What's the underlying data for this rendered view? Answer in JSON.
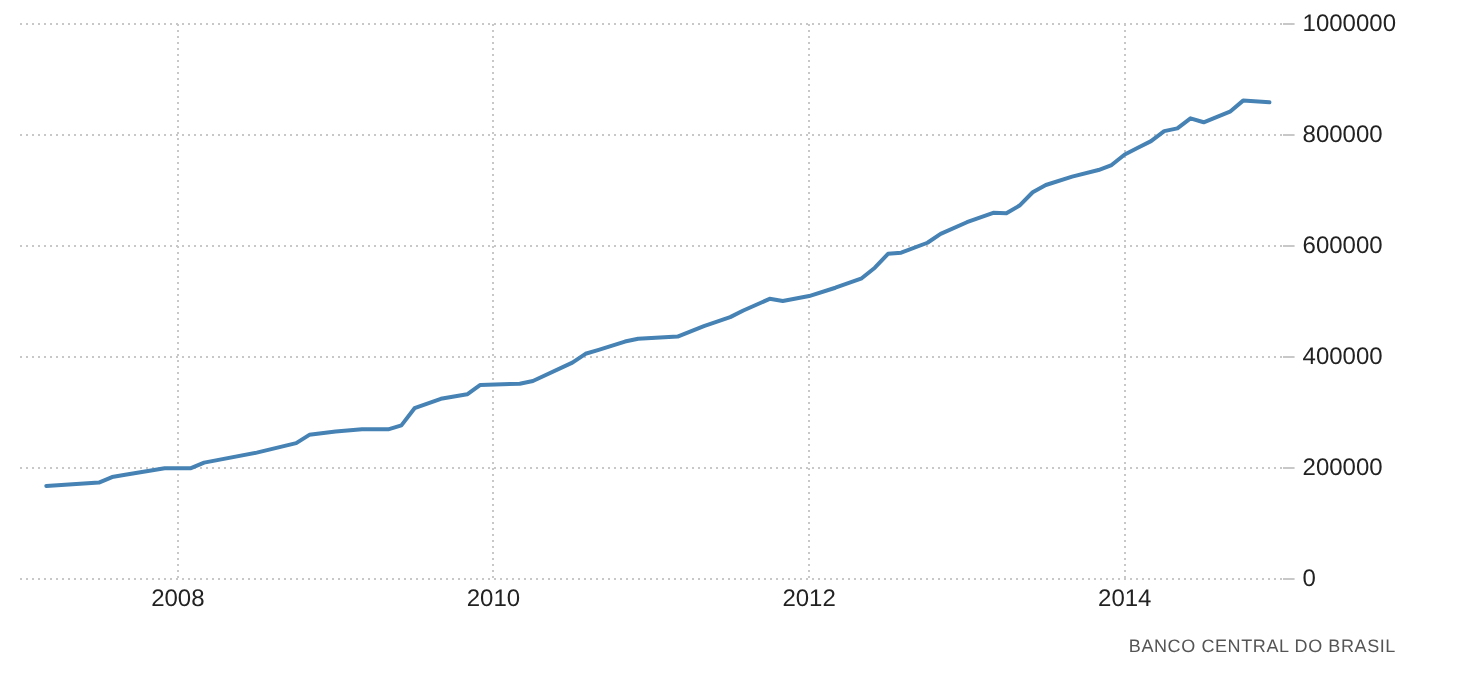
{
  "chart_data": {
    "type": "line",
    "x": [
      "2007-03",
      "2007-07",
      "2007-08",
      "2007-09",
      "2007-12",
      "2008-02",
      "2008-03",
      "2008-07",
      "2008-10",
      "2008-11",
      "2009-01",
      "2009-03",
      "2009-05",
      "2009-06",
      "2009-07",
      "2009-09",
      "2009-11",
      "2009-12",
      "2010-03",
      "2010-04",
      "2010-07",
      "2010-08",
      "2010-09",
      "2010-11",
      "2010-12",
      "2011-03",
      "2011-05",
      "2011-07",
      "2011-08",
      "2011-10",
      "2011-11",
      "2012-01",
      "2012-03",
      "2012-05",
      "2012-06",
      "2012-07",
      "2012-08",
      "2012-10",
      "2012-11",
      "2013-01",
      "2013-03",
      "2013-04",
      "2013-05",
      "2013-06",
      "2013-07",
      "2013-09",
      "2013-11",
      "2013-12",
      "2014-01",
      "2014-02",
      "2014-03",
      "2014-04",
      "2014-05",
      "2014-06",
      "2014-07",
      "2014-09",
      "2014-10",
      "2014-12"
    ],
    "series": [
      {
        "color": "#4682b4",
        "values": [
          168000,
          174000,
          184000,
          188000,
          200000,
          200000,
          210000,
          228000,
          245000,
          260000,
          266000,
          270000,
          270000,
          277000,
          308000,
          325000,
          333000,
          350000,
          352000,
          357000,
          390000,
          406000,
          413000,
          428000,
          433000,
          437000,
          456000,
          472000,
          484000,
          505000,
          501000,
          510000,
          525000,
          542000,
          561000,
          586000,
          588000,
          606000,
          622000,
          643000,
          660000,
          659000,
          673000,
          697000,
          710000,
          725000,
          737000,
          746000,
          765000,
          777000,
          789000,
          807000,
          812000,
          830000,
          823000,
          842000,
          862000,
          859000
        ]
      }
    ],
    "xlim": [
      "2007-01",
      "2015-01"
    ],
    "xticks": [
      "2008",
      "2010",
      "2012",
      "2014"
    ],
    "ylim": [
      0,
      1000000
    ],
    "yticks": [
      0,
      200000,
      400000,
      600000,
      800000,
      1000000
    ],
    "grid": true,
    "legend": false,
    "marker": "none",
    "line_style": "solid",
    "annotations": [
      "BANCO CENTRAL DO BRASIL"
    ]
  }
}
